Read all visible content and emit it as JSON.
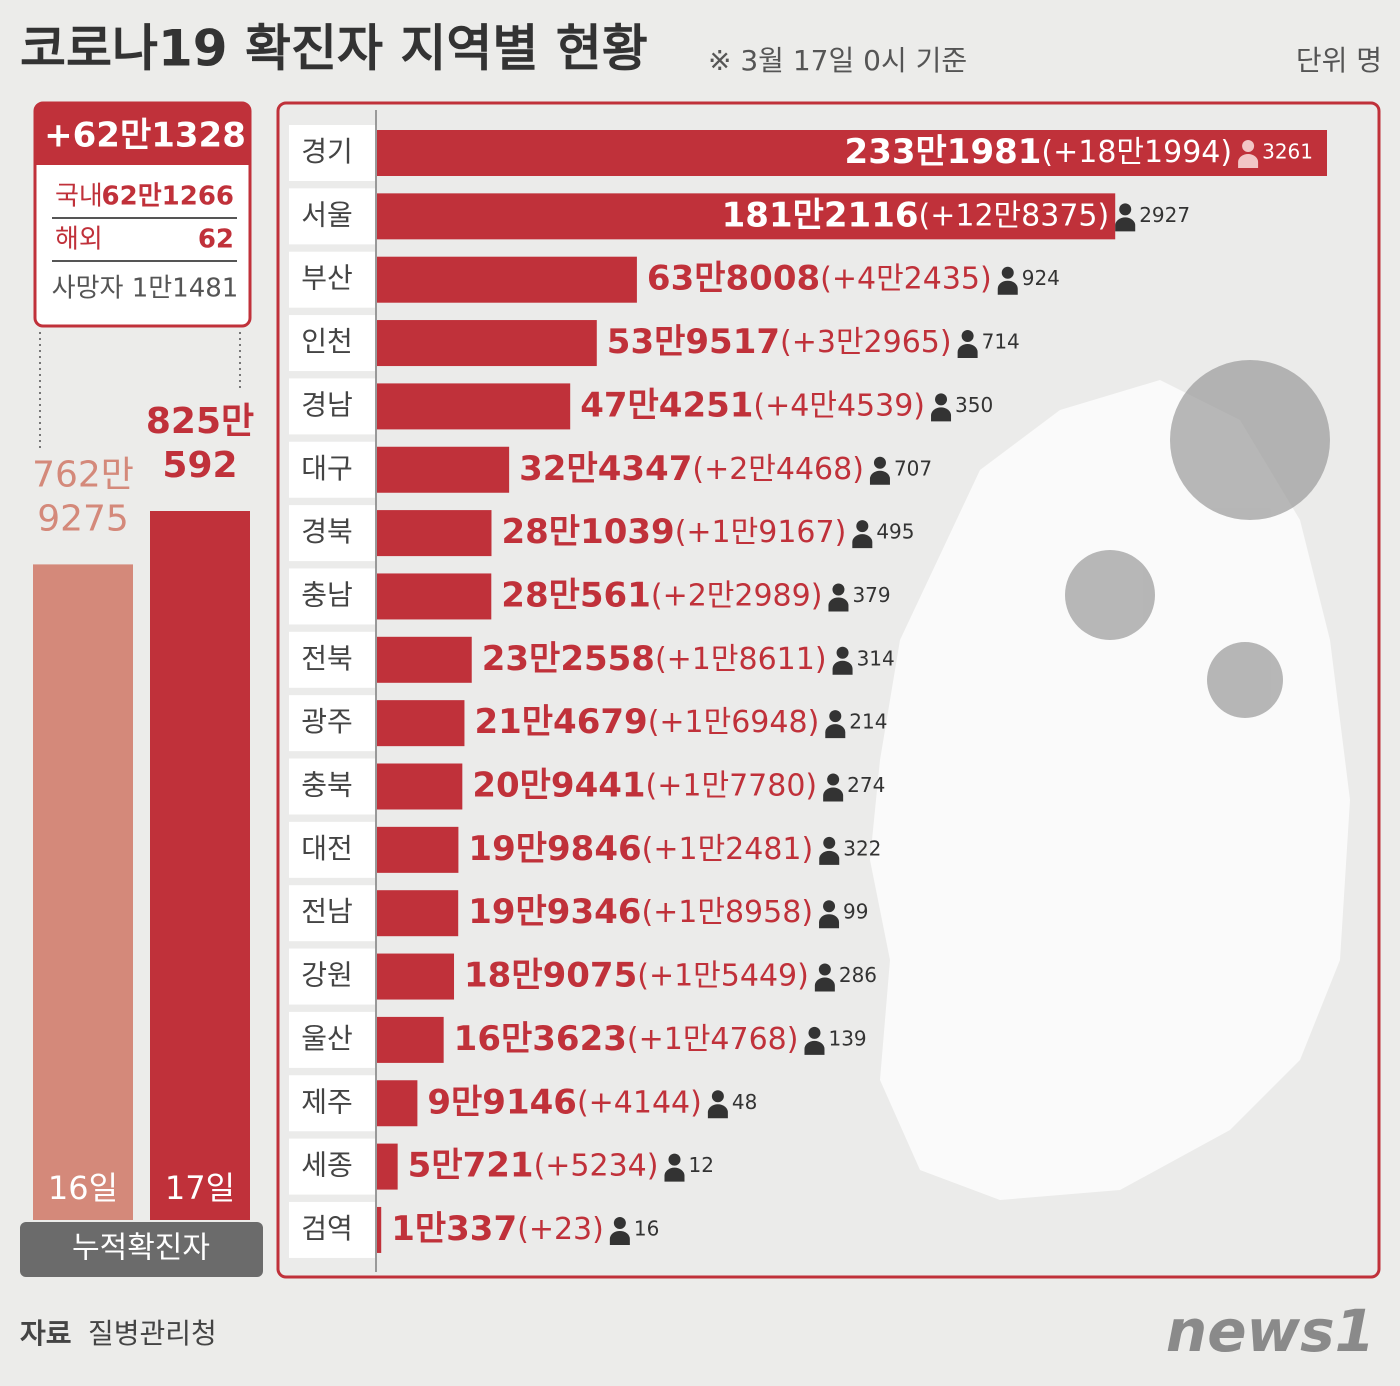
{
  "title": "코로나19 확진자 지역별 현황",
  "subtitle": "※ 3월 17일 0시 기준",
  "unit": "단위 명",
  "summary": {
    "total": "+62만1328",
    "domestic_label": "국내",
    "domestic": "62만1266",
    "overseas_label": "해외",
    "overseas": "62",
    "deaths": "사망자 1만1481"
  },
  "source_label": "자료",
  "source": "질병관리청",
  "logo": "news1",
  "chart_data": [
    {
      "type": "bar",
      "categories": [
        "16일",
        "17일"
      ],
      "values": [
        7629275,
        8250592
      ],
      "value_labels": [
        [
          "762만",
          "9275"
        ],
        [
          "825만",
          "592"
        ]
      ],
      "colors": [
        "#d4897a",
        "#c0313a"
      ],
      "label_colors": [
        "#d4897a",
        "#c0313a"
      ],
      "xlabel": "누적확진자"
    },
    {
      "type": "hbar",
      "color": "#c0313a",
      "categories": [
        "경기",
        "서울",
        "부산",
        "인천",
        "경남",
        "대구",
        "경북",
        "충남",
        "전북",
        "광주",
        "충북",
        "대전",
        "전남",
        "강원",
        "울산",
        "제주",
        "세종",
        "검역"
      ],
      "values": [
        2331981,
        1812116,
        638008,
        539517,
        474251,
        324347,
        281039,
        280561,
        232558,
        214679,
        209441,
        199846,
        199346,
        189075,
        163623,
        99146,
        50721,
        10337
      ],
      "value_labels": [
        "233만1981",
        "181만2116",
        "63만8008",
        "53만9517",
        "47만4251",
        "32만4347",
        "28만1039",
        "28만561",
        "23만2558",
        "21만4679",
        "20만9441",
        "19만9846",
        "19만9346",
        "18만9075",
        "16만3623",
        "9만9146",
        "5만721",
        "1만337"
      ],
      "increase_values": [
        181994,
        128375,
        42435,
        32965,
        44539,
        24468,
        19167,
        22989,
        18611,
        16948,
        17780,
        12481,
        18958,
        15449,
        14768,
        4144,
        5234,
        23
      ],
      "increase_labels": [
        "(+18만1994)",
        "(+12만8375)",
        "(+4만2435)",
        "(+3만2965)",
        "(+4만4539)",
        "(+2만4468)",
        "(+1만9167)",
        "(+2만2989)",
        "(+1만8611)",
        "(+1만6948)",
        "(+1만7780)",
        "(+1만2481)",
        "(+1만8958)",
        "(+1만5449)",
        "(+1만4768)",
        "(+4144)",
        "(+5234)",
        "(+23)"
      ],
      "deaths": [
        3261,
        2927,
        924,
        714,
        350,
        707,
        495,
        379,
        314,
        214,
        274,
        322,
        99,
        286,
        139,
        48,
        12,
        16
      ]
    }
  ]
}
